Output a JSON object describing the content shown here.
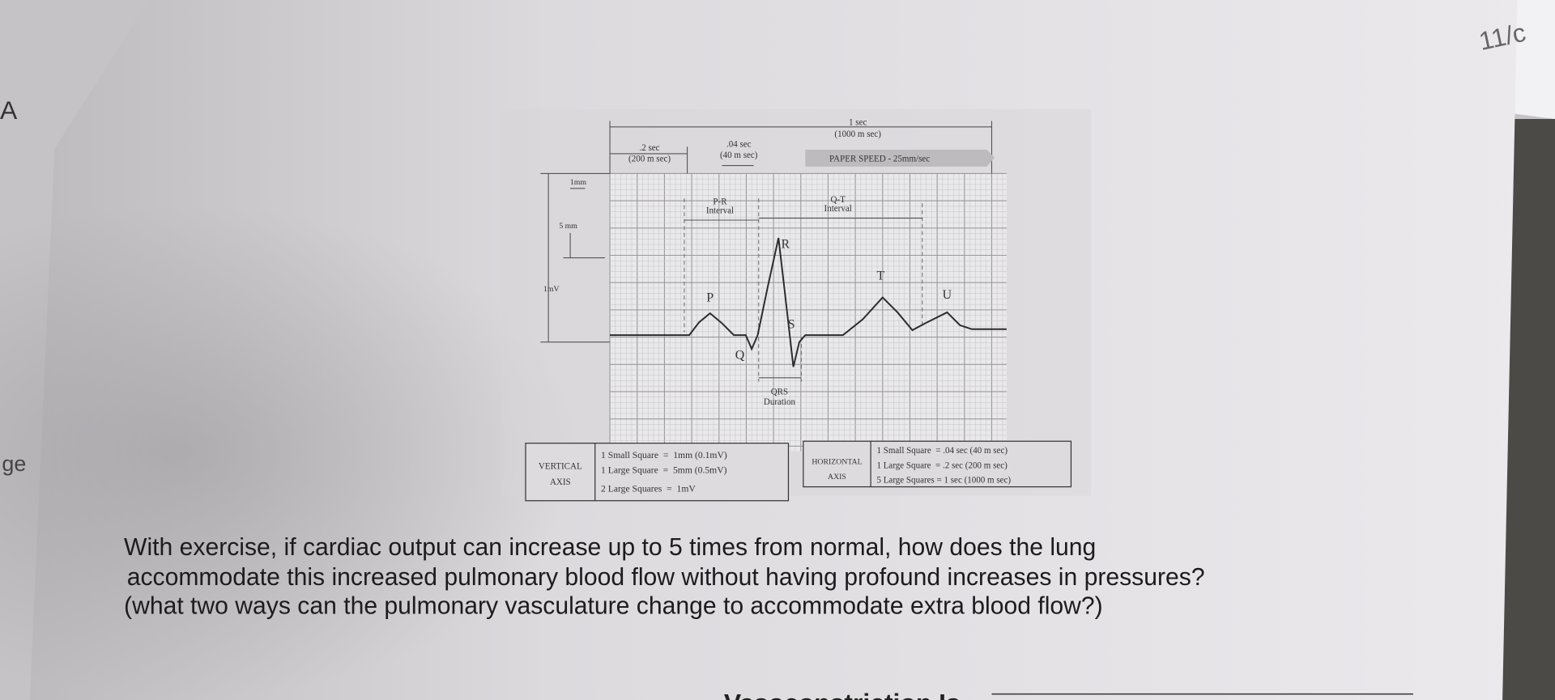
{
  "margin": {
    "left_letter": "A",
    "left_word": "ge",
    "right_note": "11/c"
  },
  "diagram": {
    "top_scale": {
      "one_sec": "1 sec",
      "one_sec_ms": "(1000 m sec)",
      "large_sec": ".2 sec",
      "large_ms": "(200 m sec)",
      "small_sec": ".04 sec",
      "small_ms": "(40 m sec)",
      "paper_speed": "PAPER SPEED - 25mm/sec"
    },
    "left_scale": {
      "small": "1mm",
      "large": "5 mm",
      "millivolt": "1mV"
    },
    "intervals": {
      "pr": [
        "P-R",
        "Interval"
      ],
      "qt": [
        "Q-T",
        "Interval"
      ],
      "qrs": [
        "QRS",
        "Duration"
      ]
    },
    "waves": {
      "p": "P",
      "q": "Q",
      "r": "R",
      "s": "S",
      "t": "T",
      "u": "U"
    }
  },
  "vertical_axis": {
    "label": [
      "VERTICAL",
      "AXIS"
    ],
    "rows": [
      "1 Small Square  =  1mm (0.1mV)",
      "1 Large Square  =  5mm (0.5mV)",
      "2 Large Squares  =  1mV"
    ]
  },
  "horizontal_axis": {
    "label": [
      "HORIZONTAL",
      "AXIS"
    ],
    "rows": [
      "1 Small Square  = .04 sec (40 m sec)",
      "1 Large Square  = .2 sec (200 m sec)",
      "5 Large Squares = 1 sec (1000 m sec)"
    ]
  },
  "question": {
    "lines": [
      "With exercise, if cardiac output can increase up to 5 times from normal, how does the lung",
      "accommodate this increased pulmonary blood flow without having profound increases in pressures?",
      "(what two ways can the pulmonary vasculature change to accommodate extra blood flow?)"
    ],
    "cut_off": "Vasoconstriction Is"
  }
}
